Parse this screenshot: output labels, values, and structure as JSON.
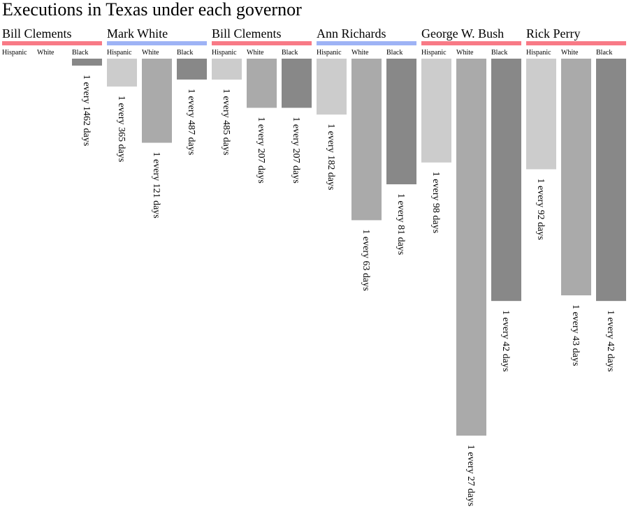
{
  "page": {
    "title": "Executions in Texas under each governor"
  },
  "colors": {
    "republican": "#f87a86",
    "democrat": "#9eb3f5",
    "hispanic": "#cccccc",
    "white": "#aaaaaa",
    "black": "#888888"
  },
  "chart_data": {
    "type": "bar",
    "title": "Executions in Texas under each governor",
    "categories": [
      "Hispanic",
      "White",
      "Black"
    ],
    "value_meaning": "days between executions (bar length shows execution rate)",
    "governors": [
      {
        "name": "Bill Clements",
        "party": "republican",
        "rows": [
          {
            "race": "Hispanic",
            "days": null,
            "label": ""
          },
          {
            "race": "White",
            "days": null,
            "label": ""
          },
          {
            "race": "Black",
            "days": 1462,
            "label": "1 every 1462 days"
          }
        ]
      },
      {
        "name": "Mark White",
        "party": "democrat",
        "rows": [
          {
            "race": "Hispanic",
            "days": 365,
            "label": "1 every 365 days"
          },
          {
            "race": "White",
            "days": 121,
            "label": "1 every 121 days"
          },
          {
            "race": "Black",
            "days": 487,
            "label": "1 every 487 days"
          }
        ]
      },
      {
        "name": "Bill Clements",
        "party": "republican",
        "rows": [
          {
            "race": "Hispanic",
            "days": 485,
            "label": "1 every 485 days"
          },
          {
            "race": "White",
            "days": 207,
            "label": "1 every 207 days"
          },
          {
            "race": "Black",
            "days": 207,
            "label": "1 every 207 days"
          }
        ]
      },
      {
        "name": "Ann Richards",
        "party": "democrat",
        "rows": [
          {
            "race": "Hispanic",
            "days": 182,
            "label": "1 every 182 days"
          },
          {
            "race": "White",
            "days": 63,
            "label": "1 every 63 days"
          },
          {
            "race": "Black",
            "days": 81,
            "label": "1 every 81 days"
          }
        ]
      },
      {
        "name": "George W. Bush",
        "party": "republican",
        "rows": [
          {
            "race": "Hispanic",
            "days": 98,
            "label": "1 every 98 days"
          },
          {
            "race": "White",
            "days": 27,
            "label": "1 every 27 days"
          },
          {
            "race": "Black",
            "days": 42,
            "label": "1 every 42 days"
          }
        ]
      },
      {
        "name": "Rick Perry",
        "party": "republican",
        "rows": [
          {
            "race": "Hispanic",
            "days": 92,
            "label": "1 every 92 days"
          },
          {
            "race": "White",
            "days": 43,
            "label": "1 every 43 days"
          },
          {
            "race": "Black",
            "days": 42,
            "label": "1 every 42 days"
          }
        ]
      }
    ]
  }
}
